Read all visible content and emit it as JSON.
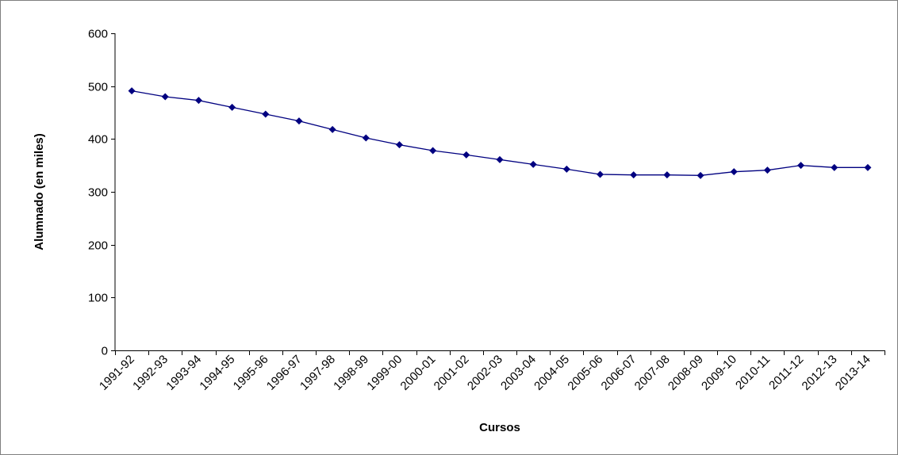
{
  "chart_data": {
    "type": "line",
    "title": "",
    "xlabel": "Cursos",
    "ylabel": "Alumnado (en miles)",
    "ylim": [
      0,
      600
    ],
    "yticks": [
      0,
      100,
      200,
      300,
      400,
      500,
      600
    ],
    "grid": false,
    "legend": "none",
    "categories": [
      "1991-92",
      "1992-93",
      "1993-94",
      "1994-95",
      "1995-96",
      "1996-97",
      "1997-98",
      "1998-99",
      "1999-00",
      "2000-01",
      "2001-02",
      "2002-03",
      "2003-04",
      "2004-05",
      "2005-06",
      "2006-07",
      "2007-08",
      "2008-09",
      "2009-10",
      "2010-11",
      "2011-12",
      "2012-13",
      "2013-14"
    ],
    "series": [
      {
        "values": [
          491,
          480,
          473,
          460,
          447,
          434,
          418,
          402,
          389,
          378,
          370,
          361,
          352,
          343,
          333,
          332,
          332,
          331,
          338,
          341,
          350,
          346,
          346
        ],
        "color": "#000080",
        "marker": "diamond"
      }
    ]
  }
}
